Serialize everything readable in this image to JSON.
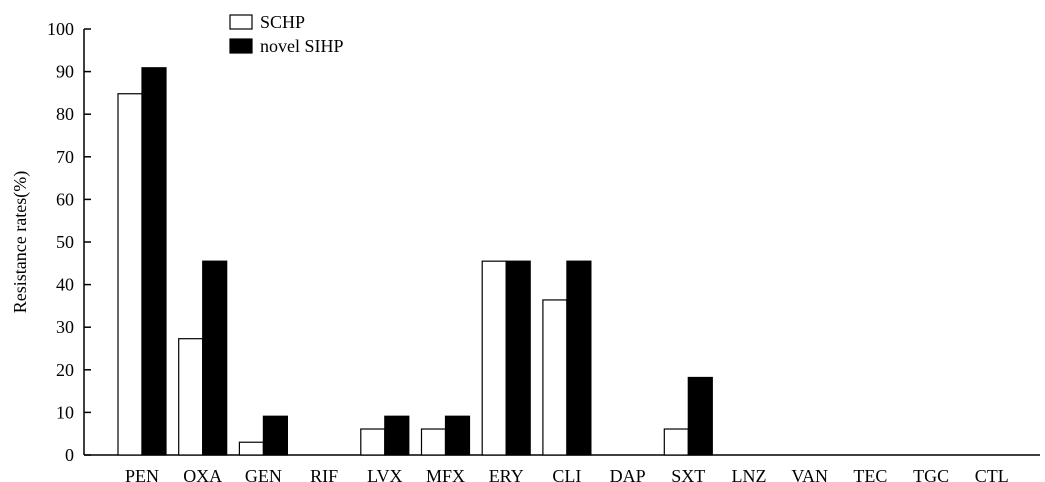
{
  "chart_data": {
    "type": "bar",
    "categories": [
      "PEN",
      "OXA",
      "GEN",
      "RIF",
      "LVX",
      "MFX",
      "ERY",
      "CLI",
      "DAP",
      "SXT",
      "LNZ",
      "VAN",
      "TEC",
      "TGC",
      "CTL"
    ],
    "series": [
      {
        "name": "SCHP",
        "color": "#ffffff",
        "values": [
          84.8,
          27.3,
          3.0,
          0,
          6.1,
          6.1,
          45.5,
          36.4,
          0,
          6.1,
          0,
          0,
          0,
          0,
          0
        ]
      },
      {
        "name": "novel SIHP",
        "color": "#000000",
        "values": [
          90.9,
          45.5,
          9.1,
          0,
          9.1,
          9.1,
          45.5,
          45.5,
          0,
          18.2,
          0,
          0,
          0,
          0,
          0
        ]
      }
    ],
    "ylabel": "Resistance rates(%)",
    "xlabel": "",
    "ylim": [
      0,
      100
    ],
    "yticks": [
      0,
      10,
      20,
      30,
      40,
      50,
      60,
      70,
      80,
      90,
      100
    ],
    "grid": false,
    "legend": "top-left"
  }
}
